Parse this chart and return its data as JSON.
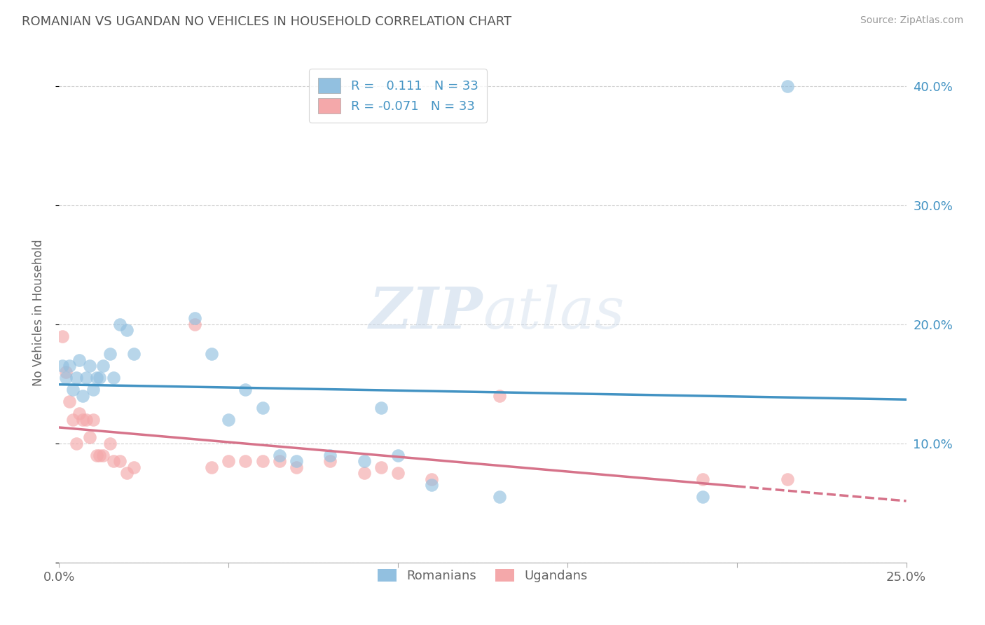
{
  "title": "ROMANIAN VS UGANDAN NO VEHICLES IN HOUSEHOLD CORRELATION CHART",
  "source": "Source: ZipAtlas.com",
  "ylabel_label": "No Vehicles in Household",
  "x_min": 0.0,
  "x_max": 0.25,
  "y_min": 0.0,
  "y_max": 0.42,
  "x_ticks": [
    0.0,
    0.05,
    0.1,
    0.15,
    0.2,
    0.25
  ],
  "y_ticks": [
    0.0,
    0.1,
    0.2,
    0.3,
    0.4
  ],
  "grid_color": "#cccccc",
  "background_color": "#ffffff",
  "blue_color": "#92c0e0",
  "pink_color": "#f4a8aa",
  "blue_line_color": "#4393c3",
  "pink_line_color": "#d6738a",
  "romanian_x": [
    0.001,
    0.002,
    0.003,
    0.004,
    0.005,
    0.006,
    0.007,
    0.008,
    0.009,
    0.01,
    0.011,
    0.012,
    0.013,
    0.015,
    0.016,
    0.018,
    0.02,
    0.022,
    0.04,
    0.045,
    0.05,
    0.055,
    0.06,
    0.065,
    0.07,
    0.08,
    0.09,
    0.095,
    0.1,
    0.11,
    0.13,
    0.19,
    0.215
  ],
  "romanian_y": [
    0.165,
    0.155,
    0.165,
    0.145,
    0.155,
    0.17,
    0.14,
    0.155,
    0.165,
    0.145,
    0.155,
    0.155,
    0.165,
    0.175,
    0.155,
    0.2,
    0.195,
    0.175,
    0.205,
    0.175,
    0.12,
    0.145,
    0.13,
    0.09,
    0.085,
    0.09,
    0.085,
    0.13,
    0.09,
    0.065,
    0.055,
    0.055,
    0.4
  ],
  "ugandan_x": [
    0.001,
    0.002,
    0.003,
    0.004,
    0.005,
    0.006,
    0.007,
    0.008,
    0.009,
    0.01,
    0.011,
    0.012,
    0.013,
    0.015,
    0.016,
    0.018,
    0.02,
    0.022,
    0.04,
    0.045,
    0.05,
    0.055,
    0.06,
    0.065,
    0.07,
    0.08,
    0.09,
    0.095,
    0.1,
    0.11,
    0.13,
    0.19,
    0.215
  ],
  "ugandan_y": [
    0.19,
    0.16,
    0.135,
    0.12,
    0.1,
    0.125,
    0.12,
    0.12,
    0.105,
    0.12,
    0.09,
    0.09,
    0.09,
    0.1,
    0.085,
    0.085,
    0.075,
    0.08,
    0.2,
    0.08,
    0.085,
    0.085,
    0.085,
    0.085,
    0.08,
    0.085,
    0.075,
    0.08,
    0.075,
    0.07,
    0.14,
    0.07,
    0.07
  ]
}
